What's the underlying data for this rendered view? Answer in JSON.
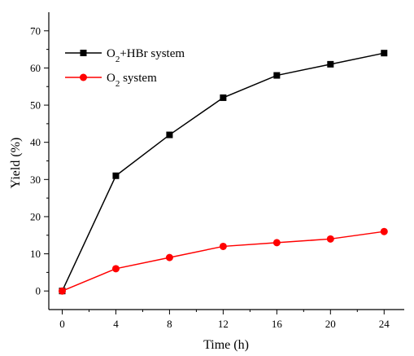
{
  "chart_data": {
    "type": "line",
    "xlabel": "Time (h)",
    "ylabel": "Yield (%)",
    "x": [
      0,
      4,
      8,
      12,
      16,
      20,
      24
    ],
    "xlim": [
      -1,
      25.5
    ],
    "ylim": [
      -5,
      75
    ],
    "xticks": [
      0,
      4,
      8,
      12,
      16,
      20,
      24
    ],
    "yticks": [
      0,
      10,
      20,
      30,
      40,
      50,
      60,
      70
    ],
    "grid": false,
    "legend_position": "top-left",
    "series": [
      {
        "name_parts": [
          [
            "O",
            "base"
          ],
          [
            "2",
            "sub"
          ],
          [
            "+HBr system",
            "base"
          ]
        ],
        "name": "O2+HBr system",
        "values": [
          0,
          31,
          42,
          52,
          58,
          61,
          64
        ],
        "color": "#000000",
        "marker": "square"
      },
      {
        "name_parts": [
          [
            "O",
            "base"
          ],
          [
            "2",
            "sub"
          ],
          [
            " system",
            "base"
          ]
        ],
        "name": "O2 system",
        "values": [
          0,
          6,
          9,
          12,
          13,
          14,
          16
        ],
        "color": "#ff0000",
        "marker": "circle"
      }
    ]
  }
}
